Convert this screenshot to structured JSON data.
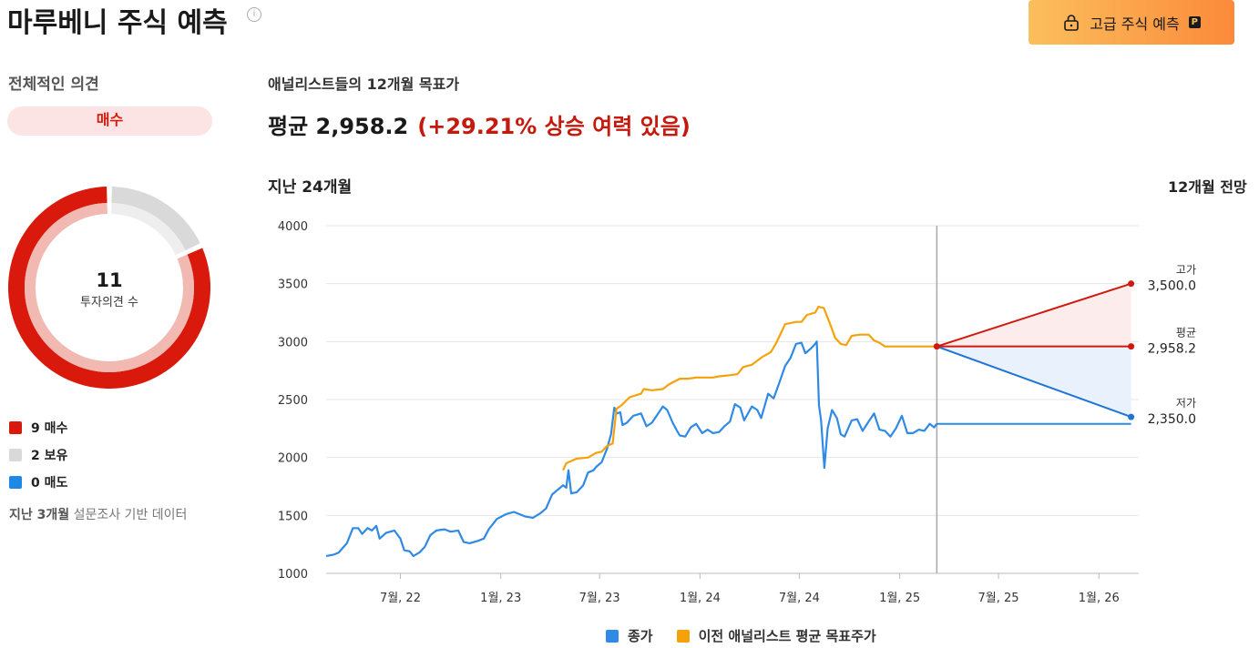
{
  "header": {
    "title": "마루베니 주식 예측",
    "premium_button": "고급 주식 예측",
    "premium_badge": "P"
  },
  "consensus": {
    "label": "전체적인 의견",
    "rating": "매수",
    "total": "11",
    "total_caption": "투자의견 수",
    "legend": [
      {
        "label": "9 매수",
        "color": "#d9190b"
      },
      {
        "label": "2 보유",
        "color": "#d9d9d9"
      },
      {
        "label": "0 매도",
        "color": "#1e88e5"
      }
    ],
    "counts": {
      "buy": 9,
      "hold": 2,
      "sell": 0
    },
    "note_prefix": "지난 3개월",
    "note_suffix": " 설문조사 기반 데이터"
  },
  "targets": {
    "label": "애널리스트들의 12개월 목표가",
    "average_text": "평균 2,958.2",
    "upside_text": "(+29.21% 상승 여력 있음)",
    "past_label": "지난 24개월",
    "outlook_label": "12개월 전망",
    "high_caption": "고가",
    "high_value": "3,500.0",
    "avg_caption": "평균",
    "avg_value": "2,958.2",
    "low_caption": "저가",
    "low_value": "2,350.0"
  },
  "chart_data": {
    "type": "line",
    "ylim": [
      1000,
      4000
    ],
    "y_ticks": [
      1000,
      1500,
      2000,
      2500,
      3000,
      3500,
      4000
    ],
    "y_tick_labels": [
      "1000",
      "1500",
      "2000",
      "2500",
      "3000",
      "3500",
      "4000"
    ],
    "x_ticks": [
      "2022-07-01",
      "2023-01-01",
      "2023-07-01",
      "2024-01-01",
      "2024-07-01",
      "2025-01-01",
      "2025-07-01",
      "2026-01-01"
    ],
    "x_tick_labels": [
      "7월, 22",
      "1월, 23",
      "7월, 23",
      "1월, 24",
      "7월, 24",
      "1월, 25",
      "7월, 25",
      "1월, 26"
    ],
    "x_range": [
      "2022-02-15",
      "2026-03-15"
    ],
    "today": "2025-03-10",
    "forecast_end": "2026-03-01",
    "series": [
      {
        "name": "종가",
        "color": "#2f8ae6",
        "points": [
          [
            "2022-02-15",
            1150
          ],
          [
            "2022-02-28",
            1160
          ],
          [
            "2022-03-10",
            1180
          ],
          [
            "2022-03-25",
            1260
          ],
          [
            "2022-04-05",
            1390
          ],
          [
            "2022-04-15",
            1390
          ],
          [
            "2022-04-22",
            1340
          ],
          [
            "2022-05-02",
            1390
          ],
          [
            "2022-05-10",
            1370
          ],
          [
            "2022-05-18",
            1410
          ],
          [
            "2022-05-24",
            1300
          ],
          [
            "2022-06-05",
            1350
          ],
          [
            "2022-06-20",
            1370
          ],
          [
            "2022-07-01",
            1300
          ],
          [
            "2022-07-08",
            1200
          ],
          [
            "2022-07-18",
            1190
          ],
          [
            "2022-07-25",
            1150
          ],
          [
            "2022-08-05",
            1180
          ],
          [
            "2022-08-15",
            1230
          ],
          [
            "2022-08-25",
            1330
          ],
          [
            "2022-09-05",
            1370
          ],
          [
            "2022-09-20",
            1380
          ],
          [
            "2022-10-01",
            1360
          ],
          [
            "2022-10-15",
            1370
          ],
          [
            "2022-10-25",
            1270
          ],
          [
            "2022-11-05",
            1260
          ],
          [
            "2022-11-20",
            1280
          ],
          [
            "2022-12-01",
            1300
          ],
          [
            "2022-12-10",
            1380
          ],
          [
            "2022-12-25",
            1470
          ],
          [
            "2023-01-10",
            1510
          ],
          [
            "2023-01-25",
            1530
          ],
          [
            "2023-02-05",
            1510
          ],
          [
            "2023-02-15",
            1490
          ],
          [
            "2023-03-01",
            1480
          ],
          [
            "2023-03-15",
            1520
          ],
          [
            "2023-03-25",
            1560
          ],
          [
            "2023-04-05",
            1680
          ],
          [
            "2023-04-15",
            1720
          ],
          [
            "2023-04-25",
            1760
          ],
          [
            "2023-05-01",
            1740
          ],
          [
            "2023-05-05",
            1890
          ],
          [
            "2023-05-10",
            1690
          ],
          [
            "2023-05-20",
            1700
          ],
          [
            "2023-06-01",
            1760
          ],
          [
            "2023-06-10",
            1870
          ],
          [
            "2023-06-20",
            1890
          ],
          [
            "2023-06-25",
            1920
          ],
          [
            "2023-07-05",
            1960
          ],
          [
            "2023-07-15",
            2080
          ],
          [
            "2023-07-22",
            2200
          ],
          [
            "2023-07-28",
            2430
          ],
          [
            "2023-08-02",
            2380
          ],
          [
            "2023-08-08",
            2390
          ],
          [
            "2023-08-12",
            2280
          ],
          [
            "2023-08-20",
            2300
          ],
          [
            "2023-09-01",
            2360
          ],
          [
            "2023-09-15",
            2380
          ],
          [
            "2023-09-25",
            2270
          ],
          [
            "2023-10-05",
            2300
          ],
          [
            "2023-10-15",
            2370
          ],
          [
            "2023-10-25",
            2440
          ],
          [
            "2023-11-02",
            2410
          ],
          [
            "2023-11-12",
            2300
          ],
          [
            "2023-11-20",
            2230
          ],
          [
            "2023-11-25",
            2190
          ],
          [
            "2023-12-05",
            2180
          ],
          [
            "2023-12-15",
            2260
          ],
          [
            "2023-12-25",
            2290
          ],
          [
            "2024-01-05",
            2210
          ],
          [
            "2024-01-15",
            2240
          ],
          [
            "2024-01-25",
            2210
          ],
          [
            "2024-02-05",
            2220
          ],
          [
            "2024-02-15",
            2270
          ],
          [
            "2024-02-25",
            2310
          ],
          [
            "2024-03-05",
            2460
          ],
          [
            "2024-03-15",
            2430
          ],
          [
            "2024-03-22",
            2320
          ],
          [
            "2024-04-05",
            2440
          ],
          [
            "2024-04-15",
            2410
          ],
          [
            "2024-04-22",
            2340
          ],
          [
            "2024-05-05",
            2550
          ],
          [
            "2024-05-15",
            2510
          ],
          [
            "2024-05-25",
            2640
          ],
          [
            "2024-06-05",
            2790
          ],
          [
            "2024-06-15",
            2860
          ],
          [
            "2024-06-25",
            2980
          ],
          [
            "2024-07-05",
            2990
          ],
          [
            "2024-07-12",
            2900
          ],
          [
            "2024-07-22",
            2940
          ],
          [
            "2024-07-30",
            2980
          ],
          [
            "2024-08-02",
            3000
          ],
          [
            "2024-08-06",
            2450
          ],
          [
            "2024-08-10",
            2320
          ],
          [
            "2024-08-16",
            1910
          ],
          [
            "2024-08-22",
            2250
          ],
          [
            "2024-08-30",
            2410
          ],
          [
            "2024-09-08",
            2340
          ],
          [
            "2024-09-15",
            2200
          ],
          [
            "2024-09-22",
            2180
          ],
          [
            "2024-10-05",
            2320
          ],
          [
            "2024-10-15",
            2330
          ],
          [
            "2024-10-25",
            2230
          ],
          [
            "2024-11-05",
            2310
          ],
          [
            "2024-11-15",
            2380
          ],
          [
            "2024-11-25",
            2240
          ],
          [
            "2024-12-05",
            2230
          ],
          [
            "2024-12-15",
            2180
          ],
          [
            "2024-12-25",
            2250
          ],
          [
            "2025-01-05",
            2360
          ],
          [
            "2025-01-15",
            2210
          ],
          [
            "2025-01-25",
            2210
          ],
          [
            "2025-02-05",
            2240
          ],
          [
            "2025-02-15",
            2230
          ],
          [
            "2025-02-25",
            2290
          ],
          [
            "2025-03-05",
            2260
          ],
          [
            "2025-03-10",
            2290
          ]
        ]
      },
      {
        "name": "이전 애널리스트 평균 목표주가",
        "color": "#f5a20a",
        "points": [
          [
            "2023-04-25",
            1890
          ],
          [
            "2023-05-01",
            1950
          ],
          [
            "2023-05-20",
            1990
          ],
          [
            "2023-06-10",
            2000
          ],
          [
            "2023-06-25",
            2040
          ],
          [
            "2023-07-05",
            2050
          ],
          [
            "2023-07-15",
            2100
          ],
          [
            "2023-07-25",
            2120
          ],
          [
            "2023-08-01",
            2420
          ],
          [
            "2023-08-10",
            2450
          ],
          [
            "2023-08-25",
            2520
          ],
          [
            "2023-09-15",
            2550
          ],
          [
            "2023-09-20",
            2590
          ],
          [
            "2023-10-05",
            2580
          ],
          [
            "2023-10-25",
            2590
          ],
          [
            "2023-11-05",
            2630
          ],
          [
            "2023-11-25",
            2680
          ],
          [
            "2023-12-10",
            2680
          ],
          [
            "2023-12-25",
            2690
          ],
          [
            "2024-01-10",
            2690
          ],
          [
            "2024-01-25",
            2690
          ],
          [
            "2024-02-05",
            2700
          ],
          [
            "2024-02-25",
            2710
          ],
          [
            "2024-03-10",
            2720
          ],
          [
            "2024-03-20",
            2780
          ],
          [
            "2024-04-05",
            2800
          ],
          [
            "2024-04-25",
            2870
          ],
          [
            "2024-05-10",
            2910
          ],
          [
            "2024-05-20",
            2990
          ],
          [
            "2024-06-05",
            3150
          ],
          [
            "2024-06-25",
            3170
          ],
          [
            "2024-07-05",
            3170
          ],
          [
            "2024-07-15",
            3230
          ],
          [
            "2024-07-30",
            3250
          ],
          [
            "2024-08-05",
            3300
          ],
          [
            "2024-08-15",
            3290
          ],
          [
            "2024-08-25",
            3170
          ],
          [
            "2024-09-05",
            3030
          ],
          [
            "2024-09-15",
            2980
          ],
          [
            "2024-09-25",
            2970
          ],
          [
            "2024-10-05",
            3050
          ],
          [
            "2024-10-20",
            3060
          ],
          [
            "2024-11-05",
            3060
          ],
          [
            "2024-11-15",
            3010
          ],
          [
            "2024-11-25",
            2990
          ],
          [
            "2024-12-05",
            2958.2
          ],
          [
            "2024-12-25",
            2958.2
          ],
          [
            "2025-01-25",
            2958.2
          ],
          [
            "2025-03-10",
            2958.2
          ]
        ]
      }
    ],
    "current_price": 2290,
    "forecast": {
      "high": 3500.0,
      "average": 2958.2,
      "low": 2350.0,
      "start": 2958.2
    }
  },
  "bottom_legend": [
    {
      "label": "종가",
      "color": "#2f8ae6"
    },
    {
      "label": "이전 애널리스트 평균 목표주가",
      "color": "#f5a20a"
    }
  ]
}
